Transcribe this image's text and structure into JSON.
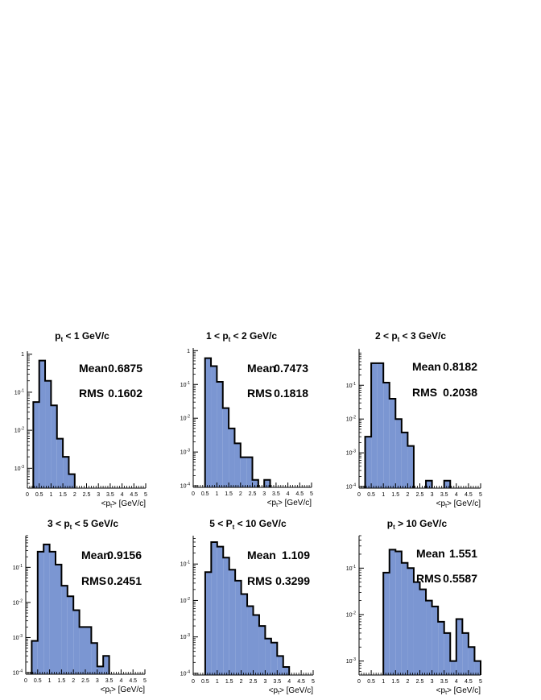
{
  "chart_data": [
    {
      "type": "histogram",
      "title": {
        "pre": "p",
        "sub": "t",
        "post": " < 1 GeV/c"
      },
      "xlabel": {
        "pre": "<p",
        "sub": "t",
        "post": "> [GeV/c]"
      },
      "xlim": [
        0,
        5
      ],
      "ylog": true,
      "ylim": [
        0.0003,
        1.2
      ],
      "xticks": [
        "0",
        "0.5",
        "1",
        "1.5",
        "2",
        "2.5",
        "3",
        "3.5",
        "4",
        "4.5",
        "5"
      ],
      "yticks": [
        {
          "v": 1,
          "label": "1"
        },
        {
          "v": 0.1,
          "label": "10-1"
        },
        {
          "v": 0.01,
          "label": "10-2"
        },
        {
          "v": 0.001,
          "label": "10-3"
        }
      ],
      "bin_width": 0.25,
      "bins": [
        [
          0.25,
          0.055
        ],
        [
          0.5,
          0.68
        ],
        [
          0.75,
          0.2
        ],
        [
          1.0,
          0.045
        ],
        [
          1.25,
          0.006
        ],
        [
          1.5,
          0.002
        ],
        [
          1.75,
          0.0007
        ]
      ],
      "stats": {
        "mean_label": "Mean",
        "mean": "0.6875",
        "rms_label": "RMS",
        "rms": "0.1602"
      }
    },
    {
      "type": "histogram",
      "title": {
        "pre": "1 < p",
        "sub": "t",
        "post": " < 2 GeV/c"
      },
      "xlabel": {
        "pre": "<p",
        "sub": "t",
        "post": "> [GeV/c]"
      },
      "xlim": [
        0,
        5
      ],
      "ylog": true,
      "ylim": [
        9e-05,
        1.2
      ],
      "xticks": [
        "0",
        "0.5",
        "1",
        "1.5",
        "2",
        "2.5",
        "3",
        "3.5",
        "4",
        "4.5",
        "5"
      ],
      "yticks": [
        {
          "v": 1,
          "label": "1"
        },
        {
          "v": 0.1,
          "label": "10-1"
        },
        {
          "v": 0.01,
          "label": "10-2"
        },
        {
          "v": 0.001,
          "label": "10-3"
        },
        {
          "v": 0.0001,
          "label": "10-4"
        }
      ],
      "bin_width": 0.25,
      "bins": [
        [
          0.5,
          0.6
        ],
        [
          0.75,
          0.35
        ],
        [
          1.0,
          0.12
        ],
        [
          1.25,
          0.02
        ],
        [
          1.5,
          0.005
        ],
        [
          1.75,
          0.0018
        ],
        [
          2.0,
          0.0007
        ],
        [
          2.25,
          0.0007
        ],
        [
          2.5,
          0.00015
        ],
        [
          3.0,
          0.00015
        ]
      ],
      "stats": {
        "mean_label": "Mean",
        "mean": "0.7473",
        "rms_label": "RMS",
        "rms": "0.1818"
      }
    },
    {
      "type": "histogram",
      "title": {
        "pre": "2 < p",
        "sub": "t",
        "post": " < 3 GeV/c"
      },
      "xlabel": {
        "pre": "<p",
        "sub": "t",
        "post": "> [GeV/c]"
      },
      "xlim": [
        0,
        5
      ],
      "ylog": true,
      "ylim": [
        9e-05,
        1.2
      ],
      "xticks": [
        "0",
        "0.5",
        "1",
        "1.5",
        "2",
        "2.5",
        "3",
        "3.5",
        "4",
        "4.5",
        "5"
      ],
      "yticks": [
        {
          "v": 0.1,
          "label": "10-1"
        },
        {
          "v": 0.01,
          "label": "10-2"
        },
        {
          "v": 0.001,
          "label": "10-3"
        },
        {
          "v": 0.0001,
          "label": "10-4"
        }
      ],
      "bin_width": 0.25,
      "bins": [
        [
          0.25,
          0.003
        ],
        [
          0.5,
          0.45
        ],
        [
          0.75,
          0.45
        ],
        [
          1.0,
          0.12
        ],
        [
          1.25,
          0.04
        ],
        [
          1.5,
          0.01
        ],
        [
          1.75,
          0.004
        ],
        [
          2.0,
          0.0016
        ],
        [
          2.75,
          0.00015
        ],
        [
          3.5,
          0.00015
        ]
      ],
      "stats": {
        "mean_label": "Mean",
        "mean": "0.8182",
        "rms_label": "RMS",
        "rms": "0.2038"
      }
    },
    {
      "type": "histogram",
      "title": {
        "pre": "3 < p",
        "sub": "t",
        "post": " < 5 GeV/c"
      },
      "xlabel": {
        "pre": "<p",
        "sub": "t",
        "post": "> [GeV/c]"
      },
      "xlim": [
        0,
        5
      ],
      "ylog": true,
      "ylim": [
        9e-05,
        0.8
      ],
      "xticks": [
        "0",
        "0.5",
        "1",
        "1.5",
        "2",
        "2.5",
        "3",
        "3.5",
        "4",
        "4.5",
        "5"
      ],
      "yticks": [
        {
          "v": 0.1,
          "label": "10-1"
        },
        {
          "v": 0.01,
          "label": "10-2"
        },
        {
          "v": 0.001,
          "label": "10-3"
        },
        {
          "v": 0.0001,
          "label": "10-4"
        }
      ],
      "bin_width": 0.25,
      "bins": [
        [
          0.25,
          0.0008
        ],
        [
          0.5,
          0.28
        ],
        [
          0.75,
          0.45
        ],
        [
          1.0,
          0.28
        ],
        [
          1.25,
          0.12
        ],
        [
          1.5,
          0.03
        ],
        [
          1.75,
          0.015
        ],
        [
          2.0,
          0.006
        ],
        [
          2.25,
          0.002
        ],
        [
          2.5,
          0.002
        ],
        [
          2.75,
          0.0007
        ],
        [
          3.0,
          0.00015
        ],
        [
          3.25,
          0.0003
        ]
      ],
      "stats": {
        "mean_label": "Mean",
        "mean": "0.9156",
        "rms_label": "RMS",
        "rms": "0.2451"
      }
    },
    {
      "type": "histogram",
      "title": {
        "pre": "5 < P",
        "sub": "t",
        "post": " < 10 GeV/c"
      },
      "xlabel": {
        "pre": "<p",
        "sub": "t",
        "post": "> [GeV/c]"
      },
      "xlim": [
        0,
        5
      ],
      "ylog": true,
      "ylim": [
        9e-05,
        0.6
      ],
      "xticks": [
        "0",
        "0.5",
        "1",
        "1.5",
        "2",
        "2.5",
        "3",
        "3.5",
        "4",
        "4.5",
        "5"
      ],
      "yticks": [
        {
          "v": 0.1,
          "label": "10-1"
        },
        {
          "v": 0.01,
          "label": "10-2"
        },
        {
          "v": 0.001,
          "label": "10-3"
        },
        {
          "v": 0.0001,
          "label": "10-4"
        }
      ],
      "bin_width": 0.25,
      "bins": [
        [
          0.5,
          0.06
        ],
        [
          0.75,
          0.4
        ],
        [
          1.0,
          0.3
        ],
        [
          1.25,
          0.15
        ],
        [
          1.5,
          0.07
        ],
        [
          1.75,
          0.035
        ],
        [
          2.0,
          0.015
        ],
        [
          2.25,
          0.007
        ],
        [
          2.5,
          0.004
        ],
        [
          2.75,
          0.002
        ],
        [
          3.0,
          0.0009
        ],
        [
          3.25,
          0.0007
        ],
        [
          3.5,
          0.0003
        ],
        [
          3.75,
          0.00015
        ]
      ],
      "stats": {
        "mean_label": "Mean",
        "mean": "1.109",
        "rms_label": "RMS",
        "rms": "0.3299"
      }
    },
    {
      "type": "histogram",
      "title": {
        "pre": "p",
        "sub": "t",
        "post": " > 10 GeV/c"
      },
      "xlabel": {
        "pre": "<p",
        "sub": "t",
        "post": "> [GeV/c]"
      },
      "xlim": [
        0,
        5
      ],
      "ylog": true,
      "ylim": [
        0.0005,
        0.5
      ],
      "xticks": [
        "0",
        "0.5",
        "1",
        "1.5",
        "2",
        "2.5",
        "3",
        "3.5",
        "4",
        "4.5",
        "5"
      ],
      "yticks": [
        {
          "v": 0.1,
          "label": "10-1"
        },
        {
          "v": 0.01,
          "label": "10-2"
        },
        {
          "v": 0.001,
          "label": "10-3"
        }
      ],
      "bin_width": 0.25,
      "bins": [
        [
          1.0,
          0.08
        ],
        [
          1.25,
          0.25
        ],
        [
          1.5,
          0.23
        ],
        [
          1.75,
          0.13
        ],
        [
          2.0,
          0.1
        ],
        [
          2.25,
          0.05
        ],
        [
          2.5,
          0.035
        ],
        [
          2.75,
          0.02
        ],
        [
          3.0,
          0.015
        ],
        [
          3.25,
          0.007
        ],
        [
          3.5,
          0.004
        ],
        [
          3.75,
          0.001
        ],
        [
          4.0,
          0.008
        ],
        [
          4.25,
          0.004
        ],
        [
          4.5,
          0.002
        ],
        [
          4.75,
          0.001
        ]
      ],
      "stats": {
        "mean_label": "Mean",
        "mean": "1.551",
        "rms_label": "RMS",
        "rms": "0.5587"
      }
    }
  ],
  "colors": {
    "fill": "#7b96d2",
    "line": "#000000",
    "background": "#ffffff"
  }
}
